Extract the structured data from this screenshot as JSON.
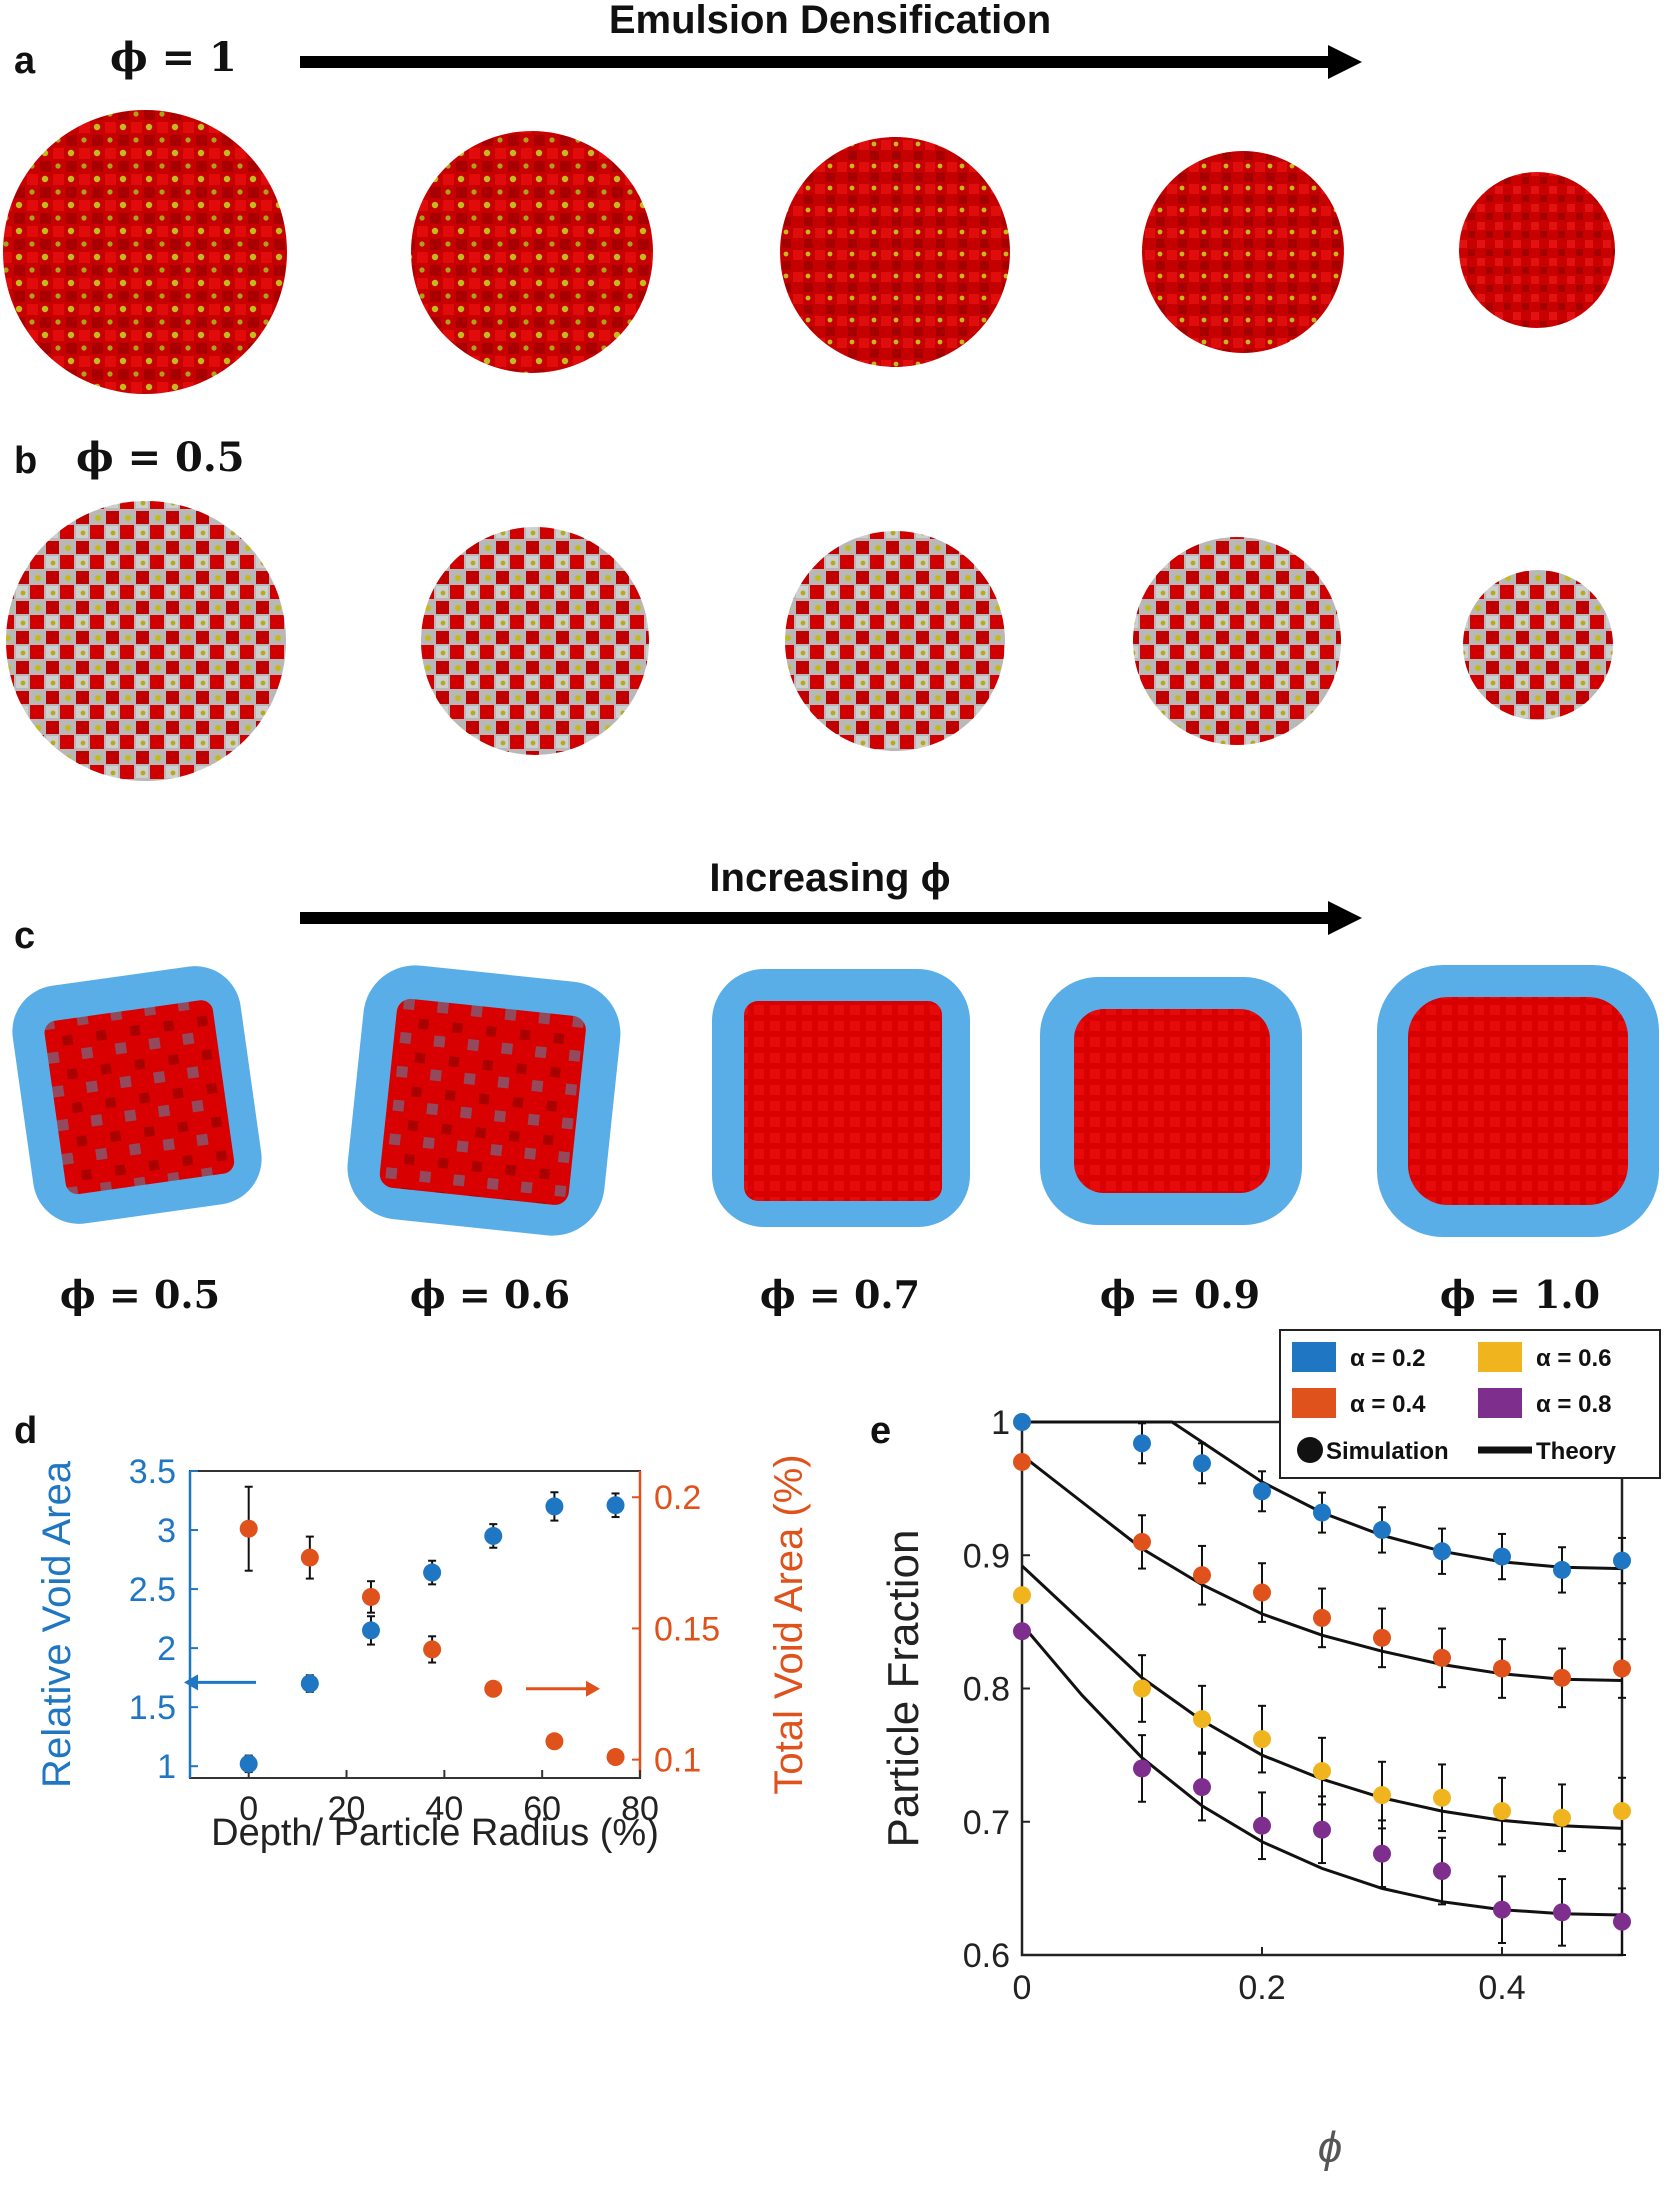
{
  "panel_a": {
    "letter": "a",
    "phi_label": "ϕ = 1",
    "arrow_label": "Emulsion Densification"
  },
  "panel_b": {
    "letter": "b",
    "phi_label": "ϕ = 0.5"
  },
  "panel_c": {
    "letter": "c",
    "arrow_label": "Increasing ϕ",
    "labels": [
      "ϕ = 0.5",
      "ϕ = 0.6",
      "ϕ = 0.7",
      "ϕ = 0.9",
      "ϕ = 1.0"
    ]
  },
  "panel_d": {
    "letter": "d"
  },
  "panel_e": {
    "letter": "e"
  },
  "colors": {
    "red_cube": "#d40000",
    "yellow_particle": "#b9b21a",
    "grey_cube": "#b5b5b5",
    "blue_shell": "#5aaee8",
    "blue_series": "#1f77c4",
    "orange_series": "#e0521c",
    "yellow_series": "#f0b41e",
    "purple_series": "#7e2f8e"
  },
  "chart_data": [
    {
      "type": "scatter",
      "xlabel": "Depth/ Particle Radius (%)",
      "ylabel_left": "Relative Void Area",
      "ylabel_right": "Total Void Area (%)",
      "xlim": [
        -12,
        80
      ],
      "ylim_left": [
        0.9,
        3.5
      ],
      "ylim_right": [
        0.093,
        0.21
      ],
      "x_ticks": [
        "0",
        "20",
        "40",
        "60",
        "80"
      ],
      "y_ticks_left": [
        "1",
        "1.5",
        "2",
        "2.5",
        "3",
        "3.5"
      ],
      "y_ticks_right": [
        "0.1",
        "0.15",
        "0.2"
      ],
      "series": [
        {
          "axis": "left",
          "x": [
            0,
            12.5,
            25,
            37.5,
            50,
            62.5,
            75
          ],
          "y": [
            1.02,
            1.7,
            2.15,
            2.64,
            2.95,
            3.2,
            3.21
          ],
          "err": [
            0.07,
            0.07,
            0.12,
            0.1,
            0.1,
            0.12,
            0.1
          ]
        },
        {
          "axis": "right",
          "x": [
            0,
            12.5,
            25,
            37.5,
            50,
            62.5,
            75
          ],
          "y": [
            0.188,
            0.177,
            0.162,
            0.142,
            0.127,
            0.107,
            0.101
          ],
          "err": [
            0.016,
            0.008,
            0.006,
            0.005,
            0.002,
            0,
            0
          ]
        }
      ]
    },
    {
      "type": "scatter",
      "xlabel": "ϕ",
      "ylabel": "Particle Fraction",
      "xlim": [
        0,
        0.5
      ],
      "ylim": [
        0.6,
        1.0
      ],
      "x_ticks": [
        "0",
        "0.2",
        "0.4"
      ],
      "y_ticks": [
        "0.6",
        "0.7",
        "0.8",
        "0.9",
        "1"
      ],
      "legend": {
        "entries": [
          "α = 0.2",
          "α = 0.6",
          "α = 0.4",
          "α = 0.8"
        ],
        "marker_labels": [
          "Simulation",
          "Theory"
        ]
      },
      "series": [
        {
          "name": "α = 0.2",
          "x": [
            0,
            0.1,
            0.15,
            0.2,
            0.25,
            0.3,
            0.35,
            0.4,
            0.45,
            0.5
          ],
          "y": [
            1.0,
            0.984,
            0.969,
            0.948,
            0.932,
            0.919,
            0.903,
            0.899,
            0.889,
            0.896
          ],
          "err": [
            0,
            0.015,
            0.015,
            0.015,
            0.015,
            0.017,
            0.017,
            0.017,
            0.017,
            0.017
          ],
          "theory": [
            [
              0,
              1.0
            ],
            [
              0.125,
              1.0
            ],
            [
              0.15,
              0.985
            ],
            [
              0.2,
              0.955
            ],
            [
              0.25,
              0.932
            ],
            [
              0.3,
              0.915
            ],
            [
              0.35,
              0.903
            ],
            [
              0.4,
              0.895
            ],
            [
              0.45,
              0.891
            ],
            [
              0.5,
              0.89
            ]
          ]
        },
        {
          "name": "α = 0.4",
          "x": [
            0,
            0.1,
            0.15,
            0.2,
            0.25,
            0.3,
            0.35,
            0.4,
            0.45,
            0.5
          ],
          "y": [
            0.97,
            0.91,
            0.885,
            0.872,
            0.853,
            0.838,
            0.823,
            0.815,
            0.808,
            0.815
          ],
          "err": [
            0,
            0.02,
            0.022,
            0.022,
            0.022,
            0.022,
            0.022,
            0.022,
            0.022,
            0.022
          ],
          "theory": [
            [
              0,
              0.975
            ],
            [
              0.05,
              0.94
            ],
            [
              0.1,
              0.905
            ],
            [
              0.15,
              0.878
            ],
            [
              0.2,
              0.856
            ],
            [
              0.25,
              0.84
            ],
            [
              0.3,
              0.828
            ],
            [
              0.35,
              0.818
            ],
            [
              0.4,
              0.811
            ],
            [
              0.45,
              0.807
            ],
            [
              0.5,
              0.806
            ]
          ]
        },
        {
          "name": "α = 0.6",
          "x": [
            0,
            0.1,
            0.15,
            0.2,
            0.25,
            0.3,
            0.35,
            0.4,
            0.45,
            0.5
          ],
          "y": [
            0.87,
            0.8,
            0.777,
            0.762,
            0.738,
            0.72,
            0.718,
            0.708,
            0.703,
            0.708
          ],
          "err": [
            0,
            0.025,
            0.025,
            0.025,
            0.025,
            0.025,
            0.025,
            0.025,
            0.025,
            0.025
          ],
          "theory": [
            [
              0,
              0.892
            ],
            [
              0.05,
              0.85
            ],
            [
              0.1,
              0.808
            ],
            [
              0.15,
              0.776
            ],
            [
              0.2,
              0.75
            ],
            [
              0.25,
              0.732
            ],
            [
              0.3,
              0.718
            ],
            [
              0.35,
              0.708
            ],
            [
              0.4,
              0.701
            ],
            [
              0.45,
              0.697
            ],
            [
              0.5,
              0.695
            ]
          ]
        },
        {
          "name": "α = 0.8",
          "x": [
            0,
            0.1,
            0.15,
            0.2,
            0.25,
            0.3,
            0.35,
            0.4,
            0.45,
            0.5
          ],
          "y": [
            0.843,
            0.74,
            0.726,
            0.697,
            0.694,
            0.676,
            0.663,
            0.634,
            0.632,
            0.625
          ],
          "err": [
            0,
            0.025,
            0.025,
            0.025,
            0.025,
            0.025,
            0.025,
            0.025,
            0.025,
            0.025
          ],
          "theory": [
            [
              0,
              0.848
            ],
            [
              0.05,
              0.795
            ],
            [
              0.1,
              0.748
            ],
            [
              0.15,
              0.712
            ],
            [
              0.2,
              0.685
            ],
            [
              0.25,
              0.665
            ],
            [
              0.3,
              0.65
            ],
            [
              0.35,
              0.64
            ],
            [
              0.4,
              0.634
            ],
            [
              0.45,
              0.631
            ],
            [
              0.5,
              0.63
            ]
          ]
        }
      ]
    }
  ]
}
